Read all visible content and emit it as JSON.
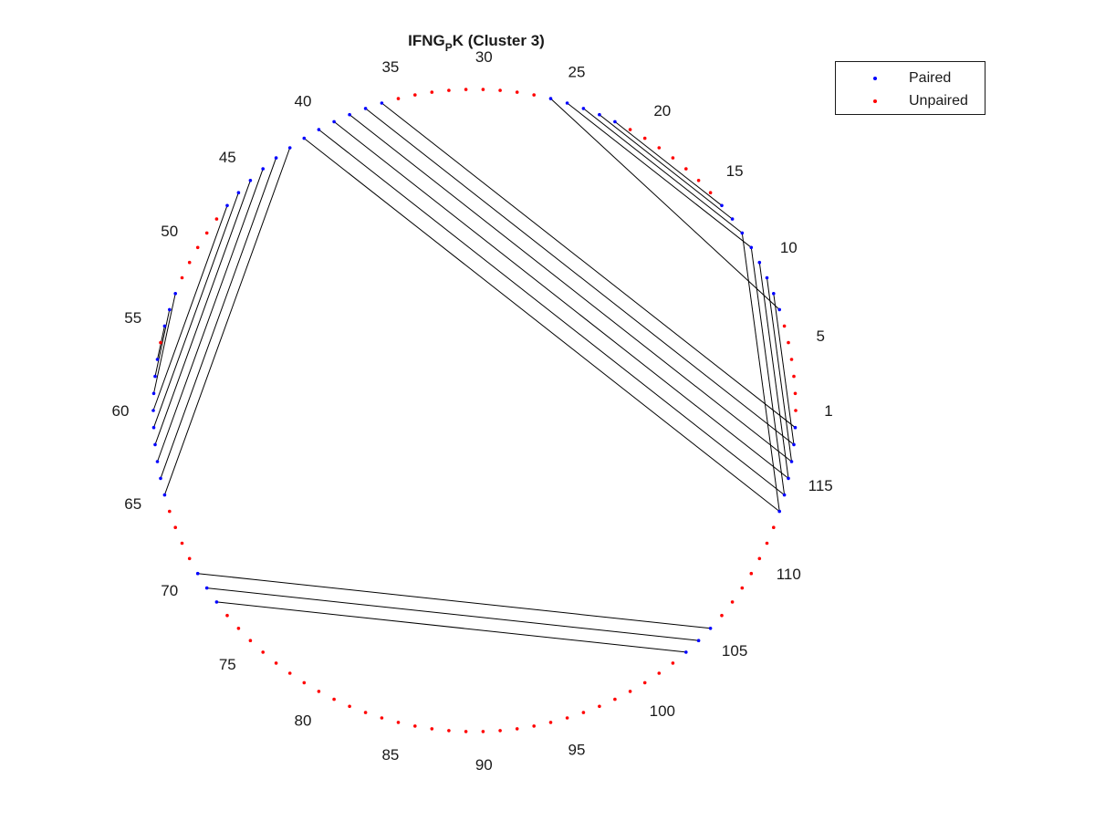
{
  "title": {
    "main": "IFNG",
    "subscript": "P",
    "suffix": "K (Cluster 3)"
  },
  "legend": {
    "paired_label": "Paired",
    "unpaired_label": "Unpaired",
    "paired_color": "#0000ff",
    "unpaired_color": "#ff0000"
  },
  "chart_data": {
    "type": "arc-diagram-circular",
    "n_positions": 118,
    "tick_labels": [
      "1",
      "5",
      "10",
      "15",
      "20",
      "25",
      "30",
      "35",
      "40",
      "45",
      "50",
      "55",
      "60",
      "65",
      "70",
      "75",
      "80",
      "85",
      "90",
      "95",
      "100",
      "105",
      "110",
      "115"
    ],
    "tick_values": [
      1,
      5,
      10,
      15,
      20,
      25,
      30,
      35,
      40,
      45,
      50,
      55,
      60,
      65,
      70,
      75,
      80,
      85,
      90,
      95,
      100,
      105,
      110,
      115
    ],
    "pairs": [
      [
        8,
        117
      ],
      [
        9,
        116
      ],
      [
        10,
        115
      ],
      [
        11,
        114
      ],
      [
        12,
        113
      ],
      [
        7,
        26
      ],
      [
        11,
        25
      ],
      [
        12,
        24
      ],
      [
        13,
        23
      ],
      [
        14,
        22
      ],
      [
        36,
        118
      ],
      [
        37,
        117
      ],
      [
        38,
        116
      ],
      [
        39,
        115
      ],
      [
        40,
        114
      ],
      [
        41,
        113
      ],
      [
        42,
        65
      ],
      [
        43,
        64
      ],
      [
        44,
        63
      ],
      [
        45,
        62
      ],
      [
        46,
        61
      ],
      [
        47,
        60
      ],
      [
        53,
        59
      ],
      [
        54,
        58
      ],
      [
        55,
        57
      ],
      [
        70,
        105
      ],
      [
        71,
        104
      ],
      [
        72,
        103
      ]
    ],
    "legend_entries": [
      "Paired",
      "Unpaired"
    ],
    "legend_position": "top-right"
  }
}
